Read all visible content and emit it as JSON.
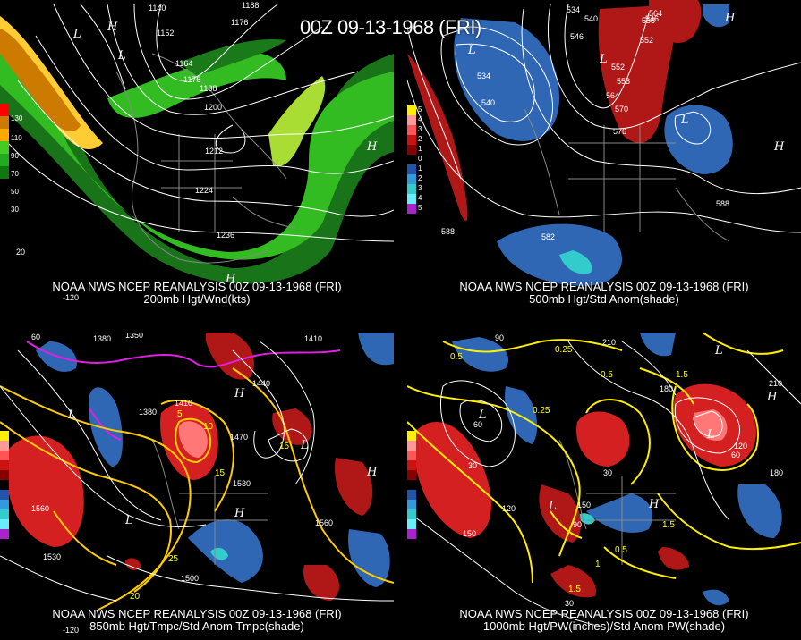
{
  "title": "00Z 09-13-1968 (FRI)",
  "panels": [
    {
      "id": "200mb",
      "caption_line1": "NOAA NWS NCEP REANALYSIS 00Z 09-13-1968 (FRI)",
      "caption_line2": "200mb Hgt/Wnd(kts)",
      "scale_labels": [
        "130",
        "110",
        "90",
        "70",
        "50",
        "30"
      ],
      "contour_labels": [
        "1140",
        "1152",
        "1164",
        "1176",
        "1188",
        "1200",
        "1212",
        "1224",
        "1236",
        "1176",
        "1188"
      ],
      "lat_lon_labels": [
        "-120",
        "20"
      ],
      "highs_lows": [
        "L",
        "H",
        "L",
        "H",
        "H"
      ]
    },
    {
      "id": "500mb",
      "caption_line1": "NOAA NWS NCEP REANALYSIS 00Z 09-13-1968 (FRI)",
      "caption_line2": "500mb Hgt/Std Anom(shade)",
      "scale_labels": [
        "5",
        "4",
        "3",
        "2",
        "1",
        "0",
        "1",
        "2",
        "3",
        "4",
        "5"
      ],
      "contour_labels": [
        "534",
        "540",
        "546",
        "552",
        "558",
        "564",
        "570",
        "576",
        "582",
        "588",
        "588",
        "534",
        "540",
        "546",
        "552",
        "558",
        "564"
      ],
      "highs_lows": [
        "L",
        "L",
        "L",
        "H",
        "H"
      ]
    },
    {
      "id": "850mb",
      "caption_line1": "NOAA NWS NCEP REANALYSIS 00Z 09-13-1968 (FRI)",
      "caption_line2": "850mb Hgt/Tmpc/Std Anom Tmpc(shade)",
      "contour_labels": [
        "1380",
        "1350",
        "1410",
        "1440",
        "1470",
        "1500",
        "1530",
        "1560",
        "1380",
        "1410",
        "1530",
        "1560"
      ],
      "temp_labels": [
        "5",
        "10",
        "15",
        "20",
        "25",
        "15"
      ],
      "lat_lon_labels": [
        "60",
        "-120"
      ],
      "highs_lows": [
        "L",
        "L",
        "H",
        "H",
        "L",
        "H"
      ]
    },
    {
      "id": "1000mb",
      "caption_line1": "NOAA NWS NCEP REANALYSIS 00Z 09-13-1968 (FRI)",
      "caption_line2": "1000mb Hgt/PW(inches)/Std Anom PW(shade)",
      "contour_labels": [
        "90",
        "60",
        "30",
        "120",
        "150",
        "180",
        "210",
        "30",
        "60",
        "90",
        "120",
        "150",
        "180",
        "210",
        "30"
      ],
      "pw_labels": [
        "0.25",
        "0.5",
        "0.25",
        "0.5",
        "1",
        "1.5",
        "0.5",
        "1.5",
        "1.5"
      ],
      "highs_lows": [
        "L",
        "L",
        "L",
        "H",
        "H",
        "L"
      ]
    }
  ],
  "scale_colors": {
    "wind": [
      "#ff0000",
      "#cc7a00",
      "#ffaa00",
      "#44cc22",
      "#22aa22",
      "#117711"
    ],
    "anom_pos": [
      "#ffee00",
      "#ff9999",
      "#ff5555",
      "#cc1111",
      "#880000"
    ],
    "anom_neg": [
      "#2255aa",
      "#3399dd",
      "#33cccc",
      "#66eeff",
      "#aa22cc"
    ]
  }
}
